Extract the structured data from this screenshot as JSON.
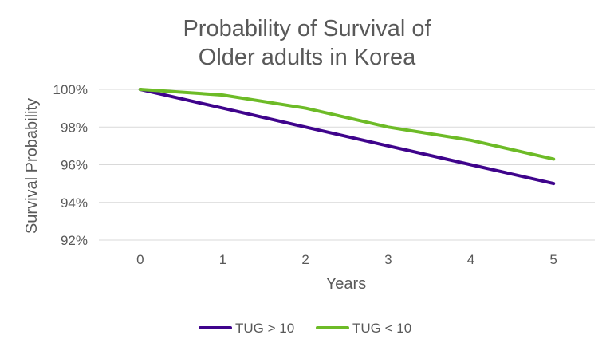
{
  "chart_data": {
    "type": "line",
    "title_lines": [
      "Probability of Survival of",
      "Older adults in Korea"
    ],
    "xlabel": "Years",
    "ylabel": "Survival Probability",
    "x": [
      0,
      1,
      2,
      3,
      4,
      5
    ],
    "x_ticks": [
      "0",
      "1",
      "2",
      "3",
      "4",
      "5"
    ],
    "ylim": [
      92,
      100
    ],
    "y_ticks": [
      {
        "value": 100,
        "label": "100%"
      },
      {
        "value": 98,
        "label": "98%"
      },
      {
        "value": 96,
        "label": "96%"
      },
      {
        "value": 94,
        "label": "94%"
      },
      {
        "value": 92,
        "label": "92%"
      }
    ],
    "grid": true,
    "legend_position": "bottom",
    "series": [
      {
        "name": "TUG > 10",
        "color": "#3f048c",
        "values": [
          100,
          99.0,
          98.0,
          97.0,
          96.0,
          95.0
        ]
      },
      {
        "name": "TUG < 10",
        "color": "#6dbb27",
        "values": [
          100,
          99.7,
          99.0,
          98.0,
          97.3,
          96.3
        ]
      }
    ]
  }
}
